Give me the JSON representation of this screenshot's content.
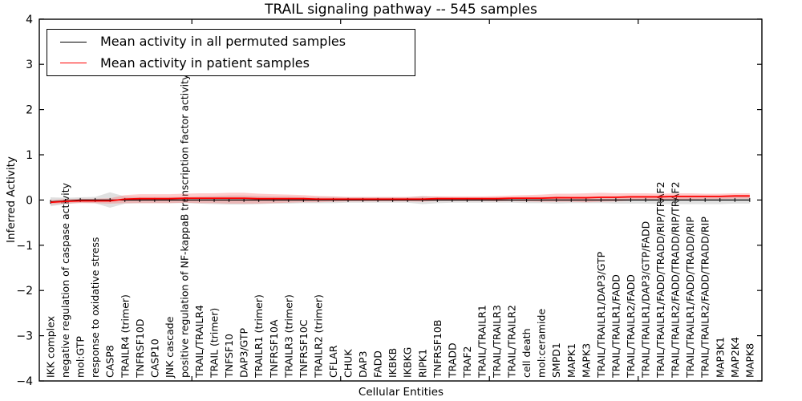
{
  "figure": {
    "title": "TRAIL signaling pathway -- 545 samples",
    "xlabel": "Cellular Entities",
    "ylabel": "Inferred Activity"
  },
  "legend": {
    "items": [
      {
        "label": "Mean activity in all permuted samples",
        "color": "#000000"
      },
      {
        "label": "Mean activity in patient samples",
        "color": "#ff0000"
      }
    ],
    "position": "upper left"
  },
  "chart_data": {
    "type": "line",
    "title": "TRAIL signaling pathway -- 545 samples",
    "xlabel": "Cellular Entities",
    "ylabel": "Inferred Activity",
    "ylim": [
      -4,
      4
    ],
    "yticks": [
      -4,
      -3,
      -2,
      -1,
      0,
      1,
      2,
      3,
      4
    ],
    "x_tick_positions": [
      9.5,
      19.5,
      29.5,
      39.5
    ],
    "grid": false,
    "legend_position": "upper left",
    "categories": [
      "IKK complex",
      "negative regulation of caspase activity",
      "mol:GTP",
      "response to oxidative stress",
      "CASP8",
      "TRAILR4 (trimer)",
      "TNFRSF10D",
      "CASP10",
      "JNK cascade",
      "positive regulation of NF-kappaB transcription factor activity",
      "TRAIL/TRAILR4",
      "TRAIL (trimer)",
      "TNFSF10",
      "DAP3/GTP",
      "TRAILR1 (trimer)",
      "TNFRSF10A",
      "TRAILR3 (trimer)",
      "TNFRSF10C",
      "TRAILR2 (trimer)",
      "CFLAR",
      "CHUK",
      "DAP3",
      "FADD",
      "IKBKB",
      "IKBKG",
      "RIPK1",
      "TNFRSF10B",
      "TRADD",
      "TRAF2",
      "TRAIL/TRAILR1",
      "TRAIL/TRAILR3",
      "TRAIL/TRAILR2",
      "cell death",
      "mol:ceramide",
      "SMPD1",
      "MAPK1",
      "MAPK3",
      "TRAIL/TRAILR1/DAP3/GTP",
      "TRAIL/TRAILR1/FADD",
      "TRAIL/TRAILR2/FADD",
      "TRAIL/TRAILR1/DAP3/GTP/FADD",
      "TRAIL/TRAILR1/FADD/TRADD/RIP/TRAF2",
      "TRAIL/TRAILR2/FADD/TRADD/RIP/TRAF2",
      "TRAIL/TRAILR1/FADD/TRADD/RIP",
      "TRAIL/TRAILR2/FADD/TRADD/RIP",
      "MAP3K1",
      "MAP2K4",
      "MAPK8"
    ],
    "series": [
      {
        "name": "Mean activity in all permuted samples",
        "color": "#000000",
        "marker": "vertical-tick",
        "band_color": "#999999",
        "band_alpha": 0.3,
        "values": [
          -0.04,
          -0.02,
          0,
          0,
          0,
          0,
          0,
          0,
          0,
          0,
          0,
          0,
          0,
          0,
          0,
          0,
          0,
          0,
          0,
          0,
          0,
          0,
          0,
          0,
          0,
          0,
          0,
          0,
          0,
          0,
          0,
          0,
          0,
          0,
          0,
          0,
          0,
          0,
          0,
          0,
          0,
          0,
          0,
          0,
          0,
          0,
          0,
          0
        ],
        "band_halfwidth": [
          0.1,
          0.07,
          0.06,
          0.07,
          0.17,
          0.08,
          0.07,
          0.07,
          0.07,
          0.07,
          0.08,
          0.09,
          0.1,
          0.1,
          0.09,
          0.08,
          0.08,
          0.07,
          0.07,
          0.07,
          0.06,
          0.06,
          0.06,
          0.06,
          0.06,
          0.09,
          0.07,
          0.06,
          0.06,
          0.06,
          0.06,
          0.06,
          0.07,
          0.07,
          0.08,
          0.07,
          0.07,
          0.07,
          0.08,
          0.08,
          0.08,
          0.09,
          0.09,
          0.09,
          0.09,
          0.09,
          0.08,
          0.08
        ]
      },
      {
        "name": "Mean activity in patient samples",
        "color": "#ff0000",
        "marker": "none",
        "band_color": "#ff5555",
        "band_alpha": 0.3,
        "values": [
          -0.05,
          -0.03,
          -0.02,
          -0.02,
          -0.02,
          0.02,
          0.03,
          0.03,
          0.03,
          0.04,
          0.04,
          0.04,
          0.04,
          0.04,
          0.03,
          0.03,
          0.03,
          0.03,
          0.02,
          0.02,
          0.02,
          0.02,
          0.02,
          0.02,
          0.02,
          0.02,
          0.03,
          0.03,
          0.03,
          0.03,
          0.03,
          0.04,
          0.04,
          0.04,
          0.05,
          0.05,
          0.05,
          0.06,
          0.06,
          0.07,
          0.07,
          0.07,
          0.08,
          0.08,
          0.08,
          0.08,
          0.09,
          0.09
        ],
        "band_halfwidth": [
          0.05,
          0.05,
          0.05,
          0.05,
          0.06,
          0.09,
          0.1,
          0.1,
          0.1,
          0.1,
          0.11,
          0.11,
          0.12,
          0.12,
          0.11,
          0.1,
          0.09,
          0.08,
          0.07,
          0.06,
          0.05,
          0.05,
          0.05,
          0.05,
          0.05,
          0.06,
          0.05,
          0.05,
          0.05,
          0.05,
          0.06,
          0.06,
          0.07,
          0.08,
          0.09,
          0.09,
          0.1,
          0.1,
          0.09,
          0.08,
          0.08,
          0.07,
          0.07,
          0.07,
          0.06,
          0.06,
          0.06,
          0.06
        ]
      }
    ]
  }
}
